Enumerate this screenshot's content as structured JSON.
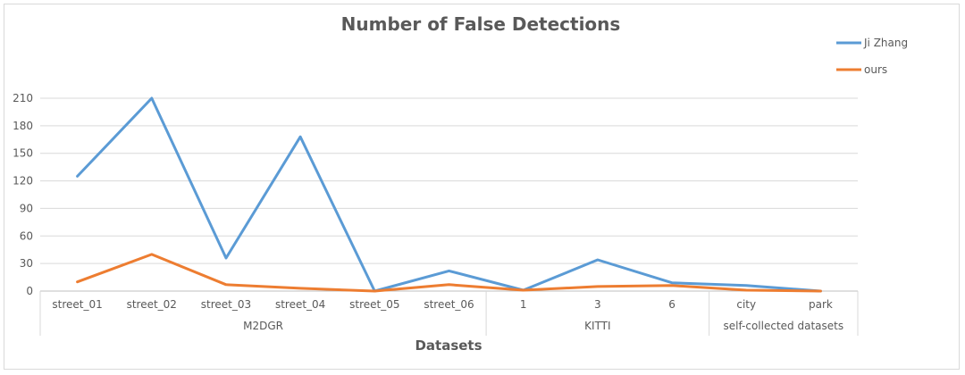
{
  "chart_data": {
    "type": "line",
    "title": "Number of False Detections",
    "xlabel": "Datasets",
    "ylabel": "",
    "ylim": [
      0,
      210
    ],
    "yticks": [
      0,
      30,
      60,
      90,
      120,
      150,
      180,
      210
    ],
    "categories": [
      "street_01",
      "street_02",
      "street_03",
      "street_04",
      "street_05",
      "street_06",
      "1",
      "3",
      "6",
      "city",
      "park"
    ],
    "groups": [
      {
        "label": "M2DGR",
        "count": 6
      },
      {
        "label": "KITTI",
        "count": 3
      },
      {
        "label": "self-collected datasets",
        "count": 2
      }
    ],
    "series": [
      {
        "name": "Ji Zhang",
        "color": "#5b9bd5",
        "values": [
          125,
          210,
          36,
          168,
          0,
          22,
          1,
          34,
          9,
          6,
          0
        ]
      },
      {
        "name": "ours",
        "color": "#ed7d31",
        "values": [
          10,
          40,
          7,
          3,
          0,
          7,
          1,
          5,
          6,
          1,
          0
        ]
      }
    ],
    "grid": true,
    "legend_position": "top-right"
  }
}
